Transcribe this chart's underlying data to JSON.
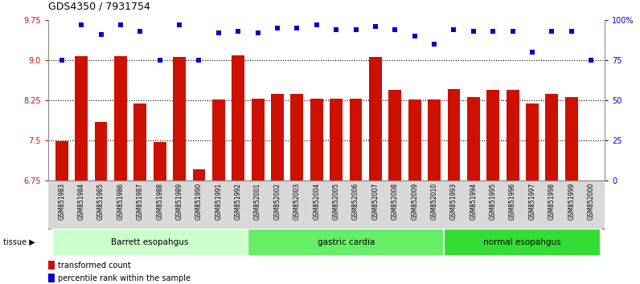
{
  "title": "GDS4350 / 7931754",
  "samples": [
    "GSM851983",
    "GSM851984",
    "GSM851985",
    "GSM851986",
    "GSM851987",
    "GSM851988",
    "GSM851989",
    "GSM851990",
    "GSM851991",
    "GSM851992",
    "GSM852001",
    "GSM852002",
    "GSM852003",
    "GSM852004",
    "GSM852005",
    "GSM852006",
    "GSM852007",
    "GSM852008",
    "GSM852009",
    "GSM852010",
    "GSM851993",
    "GSM851994",
    "GSM851995",
    "GSM851996",
    "GSM851997",
    "GSM851998",
    "GSM851999",
    "GSM852000"
  ],
  "bar_values": [
    7.48,
    9.07,
    7.84,
    9.07,
    8.18,
    7.46,
    9.05,
    6.96,
    8.26,
    9.08,
    8.28,
    8.36,
    8.36,
    8.28,
    8.28,
    8.28,
    9.05,
    8.44,
    8.26,
    8.26,
    8.46,
    8.3,
    8.44,
    8.44,
    8.19,
    8.36,
    8.3,
    6.75
  ],
  "percentile_values": [
    75,
    97,
    91,
    97,
    93,
    75,
    97,
    75,
    92,
    93,
    92,
    95,
    95,
    97,
    94,
    94,
    96,
    94,
    90,
    85,
    94,
    93,
    93,
    93,
    80,
    93,
    93,
    75
  ],
  "bar_color": "#cc1100",
  "percentile_color": "#0000cc",
  "ylim_left": [
    6.75,
    9.75
  ],
  "ylim_right": [
    0,
    100
  ],
  "yticks_left": [
    6.75,
    7.5,
    8.25,
    9.0,
    9.75
  ],
  "yticks_right": [
    0,
    25,
    50,
    75,
    100
  ],
  "ytick_labels_right": [
    "0",
    "25",
    "50",
    "75",
    "100%"
  ],
  "hlines": [
    9.0,
    8.25,
    7.5
  ],
  "groups": [
    {
      "label": "Barrett esopahgus",
      "start": 0,
      "end": 9,
      "color": "#ccffcc"
    },
    {
      "label": "gastric cardia",
      "start": 10,
      "end": 19,
      "color": "#66ee66"
    },
    {
      "label": "normal esopahgus",
      "start": 20,
      "end": 27,
      "color": "#33dd33"
    }
  ],
  "tissue_label": "tissue",
  "legend_red": "transformed count",
  "legend_blue": "percentile rank within the sample",
  "background_color": "#ffffff",
  "tick_label_color_left": "#cc1100",
  "tick_label_color_right": "#0000cc"
}
